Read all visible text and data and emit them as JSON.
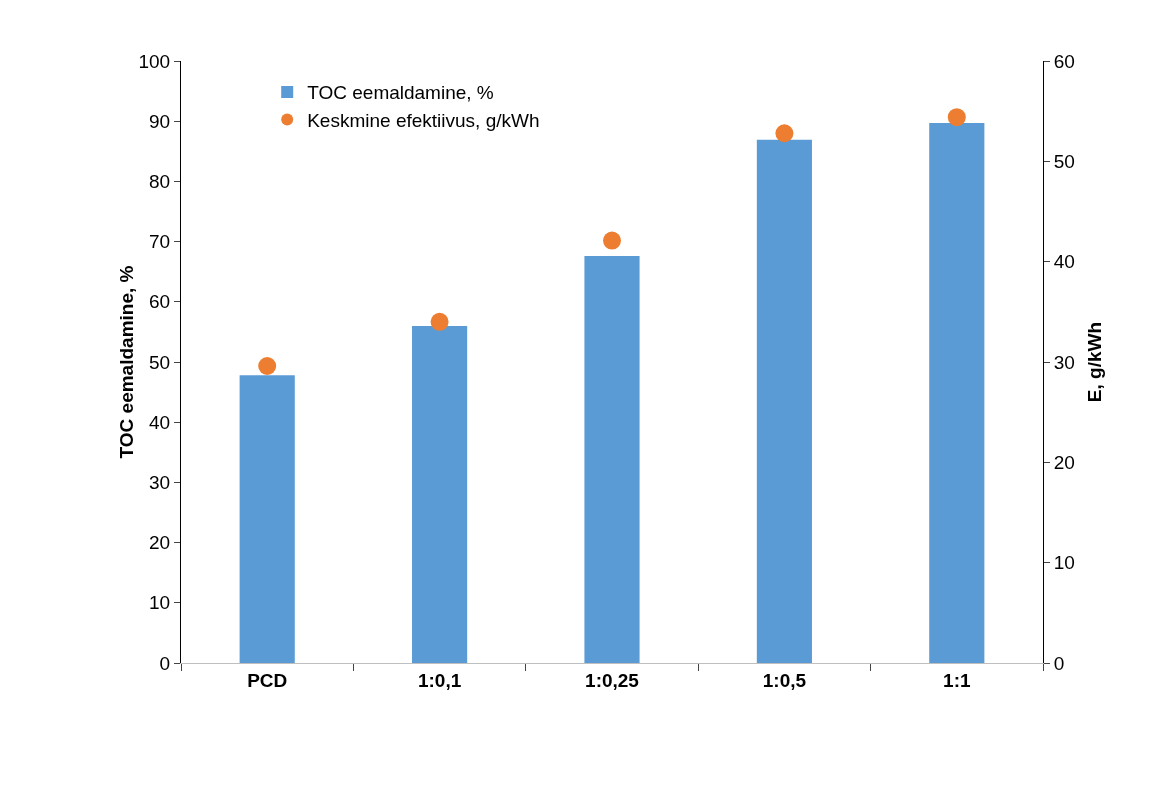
{
  "chart_data": {
    "type": "bar",
    "categories": [
      "PCD",
      "1:0,1",
      "1:0,25",
      "1:0,5",
      "1:1"
    ],
    "ylabel": "TOC eemaldamine, %",
    "y2label": "E, g/kWh",
    "ylim": [
      0,
      100
    ],
    "yticks": [
      0,
      10,
      20,
      30,
      40,
      50,
      60,
      70,
      80,
      90,
      100
    ],
    "y2lim": [
      0,
      60
    ],
    "y2ticks": [
      0,
      10,
      20,
      30,
      40,
      50,
      60
    ],
    "grid": false,
    "legend": "top left",
    "marker": "circle",
    "series": [
      {
        "name": "TOC eemaldamine, %",
        "color": "#5b9bd5",
        "values": [
          47.8,
          56,
          67.6,
          86.9,
          89.7
        ]
      },
      {
        "name": "Keskmine efektiivus, g/kWh",
        "type": "scatter",
        "axis": "y2",
        "color": "#ed7d31",
        "values": [
          29.6,
          34,
          42.1,
          52.8,
          54.4
        ]
      }
    ]
  }
}
